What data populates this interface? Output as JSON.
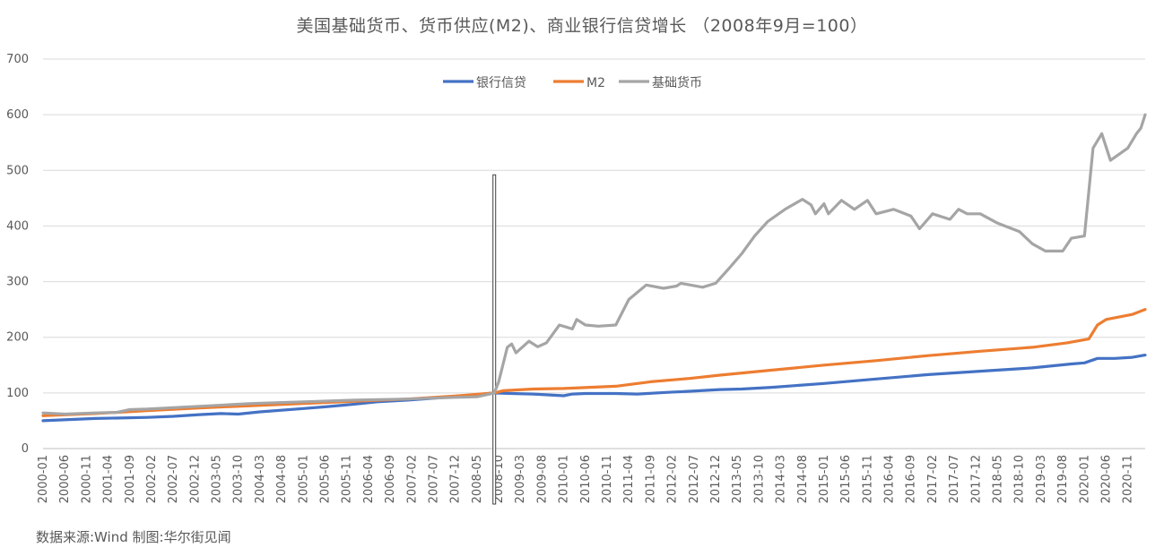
{
  "title": "美国基础货币、货币供应(M2)、商业银行信贷增长  （2008年9月=100）",
  "source": "数据来源:Wind    制图:华尔街见闻",
  "colors": {
    "bank_credit": "#4472C4",
    "m2": "#ED7D31",
    "base_money": "#A5A5A5",
    "grid": "#D9D9D9",
    "marker": "#404040"
  },
  "chart_data": {
    "type": "line",
    "title": "美国基础货币、货币供应(M2)、商业银行信贷增长  （2008年9月=100）",
    "ylim": [
      0,
      700
    ],
    "yticks": [
      0,
      100,
      200,
      300,
      400,
      500,
      600,
      700
    ],
    "grid": true,
    "legend_position": "top-center",
    "x_start": "2000-01",
    "x_end": "2021-03",
    "xtick_labels": [
      "2000-01",
      "2000-06",
      "2000-11",
      "2001-04",
      "2001-09",
      "2002-02",
      "2002-07",
      "2002-12",
      "2003-05",
      "2003-10",
      "2004-03",
      "2004-08",
      "2005-01",
      "2005-06",
      "2005-11",
      "2006-04",
      "2006-09",
      "2007-02",
      "2007-07",
      "2007-12",
      "2008-05",
      "2008-10",
      "2009-03",
      "2009-08",
      "2010-01",
      "2010-06",
      "2010-11",
      "2011-04",
      "2011-09",
      "2012-02",
      "2012-07",
      "2012-12",
      "2013-05",
      "2013-10",
      "2014-03",
      "2014-08",
      "2015-01",
      "2015-06",
      "2015-11",
      "2016-04",
      "2016-09",
      "2017-02",
      "2017-07",
      "2017-12",
      "2018-05",
      "2018-10",
      "2019-03",
      "2019-08",
      "2020-01",
      "2020-06",
      "2020-11"
    ],
    "reference_line": {
      "x": "2008-09",
      "y_top": 492
    },
    "series": [
      {
        "name": "银行信贷",
        "color": "#4472C4",
        "points": [
          [
            "2000-01",
            50
          ],
          [
            "2001-01",
            54
          ],
          [
            "2002-01",
            56
          ],
          [
            "2002-07",
            58
          ],
          [
            "2003-01",
            61
          ],
          [
            "2003-06",
            63
          ],
          [
            "2003-10",
            62
          ],
          [
            "2004-03",
            66
          ],
          [
            "2005-01",
            72
          ],
          [
            "2005-06",
            75
          ],
          [
            "2006-01",
            80
          ],
          [
            "2006-06",
            84
          ],
          [
            "2007-01",
            87
          ],
          [
            "2007-06",
            90
          ],
          [
            "2008-01",
            94
          ],
          [
            "2008-09",
            100
          ],
          [
            "2009-01",
            99
          ],
          [
            "2009-06",
            98
          ],
          [
            "2010-01",
            95
          ],
          [
            "2010-03",
            98
          ],
          [
            "2010-06",
            99
          ],
          [
            "2011-01",
            99
          ],
          [
            "2011-06",
            98
          ],
          [
            "2012-01",
            101
          ],
          [
            "2012-06",
            103
          ],
          [
            "2013-01",
            106
          ],
          [
            "2013-06",
            107
          ],
          [
            "2014-01",
            110
          ],
          [
            "2015-01",
            117
          ],
          [
            "2016-01",
            125
          ],
          [
            "2017-01",
            133
          ],
          [
            "2018-01",
            139
          ],
          [
            "2019-01",
            145
          ],
          [
            "2019-10",
            152
          ],
          [
            "2020-01",
            154
          ],
          [
            "2020-04",
            162
          ],
          [
            "2020-08",
            162
          ],
          [
            "2020-12",
            164
          ],
          [
            "2021-03",
            168
          ]
        ]
      },
      {
        "name": "M2",
        "color": "#ED7D31",
        "points": [
          [
            "2000-01",
            59
          ],
          [
            "2001-01",
            63
          ],
          [
            "2002-01",
            68
          ],
          [
            "2003-01",
            73
          ],
          [
            "2004-01",
            77
          ],
          [
            "2005-01",
            81
          ],
          [
            "2006-01",
            85
          ],
          [
            "2007-01",
            89
          ],
          [
            "2008-01",
            95
          ],
          [
            "2008-09",
            100
          ],
          [
            "2008-11",
            104
          ],
          [
            "2009-06",
            107
          ],
          [
            "2010-01",
            108
          ],
          [
            "2011-01",
            112
          ],
          [
            "2011-09",
            120
          ],
          [
            "2012-06",
            126
          ],
          [
            "2013-01",
            132
          ],
          [
            "2014-01",
            141
          ],
          [
            "2015-01",
            150
          ],
          [
            "2016-01",
            158
          ],
          [
            "2017-01",
            167
          ],
          [
            "2018-01",
            175
          ],
          [
            "2019-01",
            182
          ],
          [
            "2019-09",
            190
          ],
          [
            "2020-02",
            197
          ],
          [
            "2020-04",
            222
          ],
          [
            "2020-06",
            232
          ],
          [
            "2020-12",
            241
          ],
          [
            "2021-03",
            250
          ]
        ]
      },
      {
        "name": "基础货币",
        "color": "#A5A5A5",
        "points": [
          [
            "2000-01",
            64
          ],
          [
            "2000-06",
            62
          ],
          [
            "2001-01",
            64
          ],
          [
            "2001-06",
            65
          ],
          [
            "2001-09",
            70
          ],
          [
            "2002-01",
            71
          ],
          [
            "2003-01",
            76
          ],
          [
            "2004-01",
            81
          ],
          [
            "2005-01",
            84
          ],
          [
            "2006-01",
            87
          ],
          [
            "2007-01",
            89
          ],
          [
            "2007-12",
            92
          ],
          [
            "2008-05",
            93
          ],
          [
            "2008-09",
            100
          ],
          [
            "2008-10",
            120
          ],
          [
            "2008-12",
            182
          ],
          [
            "2009-01",
            188
          ],
          [
            "2009-02",
            172
          ],
          [
            "2009-05",
            193
          ],
          [
            "2009-07",
            183
          ],
          [
            "2009-09",
            190
          ],
          [
            "2009-12",
            222
          ],
          [
            "2010-03",
            215
          ],
          [
            "2010-04",
            232
          ],
          [
            "2010-06",
            222
          ],
          [
            "2010-09",
            220
          ],
          [
            "2011-01",
            222
          ],
          [
            "2011-04",
            268
          ],
          [
            "2011-08",
            294
          ],
          [
            "2011-12",
            288
          ],
          [
            "2012-03",
            292
          ],
          [
            "2012-04",
            297
          ],
          [
            "2012-09",
            290
          ],
          [
            "2012-12",
            297
          ],
          [
            "2013-03",
            323
          ],
          [
            "2013-06",
            350
          ],
          [
            "2013-09",
            382
          ],
          [
            "2013-12",
            408
          ],
          [
            "2014-04",
            430
          ],
          [
            "2014-08",
            448
          ],
          [
            "2014-10",
            438
          ],
          [
            "2014-11",
            422
          ],
          [
            "2015-01",
            440
          ],
          [
            "2015-02",
            422
          ],
          [
            "2015-05",
            446
          ],
          [
            "2015-08",
            430
          ],
          [
            "2015-11",
            446
          ],
          [
            "2016-01",
            422
          ],
          [
            "2016-05",
            430
          ],
          [
            "2016-09",
            418
          ],
          [
            "2016-11",
            395
          ],
          [
            "2017-02",
            422
          ],
          [
            "2017-06",
            412
          ],
          [
            "2017-08",
            430
          ],
          [
            "2017-10",
            422
          ],
          [
            "2018-01",
            422
          ],
          [
            "2018-05",
            405
          ],
          [
            "2018-10",
            390
          ],
          [
            "2019-01",
            368
          ],
          [
            "2019-04",
            355
          ],
          [
            "2019-08",
            355
          ],
          [
            "2019-10",
            378
          ],
          [
            "2020-01",
            382
          ],
          [
            "2020-03",
            540
          ],
          [
            "2020-05",
            566
          ],
          [
            "2020-07",
            518
          ],
          [
            "2020-11",
            540
          ],
          [
            "2021-01",
            566
          ],
          [
            "2021-02",
            576
          ],
          [
            "2021-03",
            600
          ]
        ]
      }
    ]
  }
}
